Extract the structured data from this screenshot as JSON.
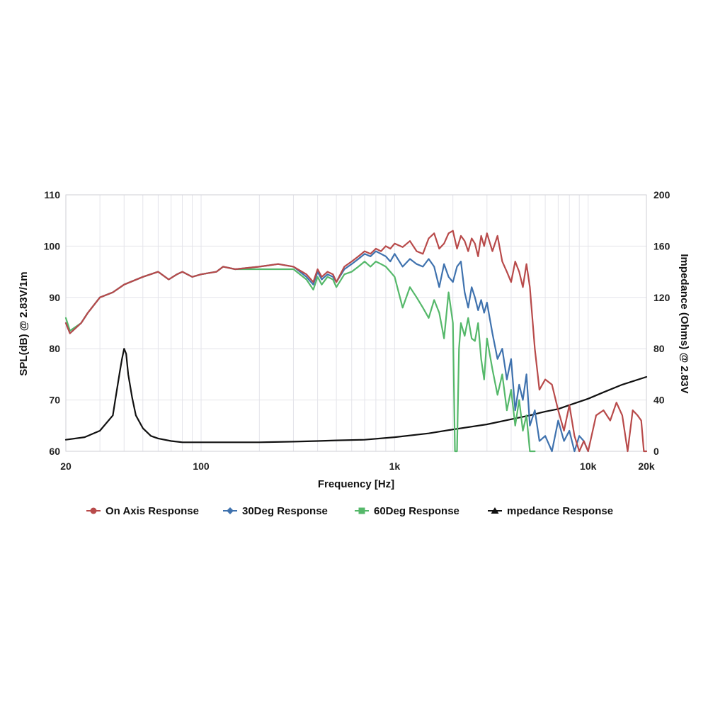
{
  "chart_data": {
    "type": "line",
    "xlabel": "Frequency [Hz]",
    "ylabel_left": "SPL(dB) @ 2.83V/1m",
    "ylabel_right": "Impedance (Ohms) @ 2.83V",
    "x_scale": "log",
    "xlim": [
      20,
      20000
    ],
    "ylim_left": [
      60,
      110
    ],
    "ylim_right": [
      0,
      200
    ],
    "x_ticks": [
      {
        "value": 20,
        "label": "20"
      },
      {
        "value": 100,
        "label": "100"
      },
      {
        "value": 1000,
        "label": "1k"
      },
      {
        "value": 10000,
        "label": "10k"
      },
      {
        "value": 20000,
        "label": "20k"
      }
    ],
    "y_left_ticks": [
      {
        "value": 60,
        "label": "60"
      },
      {
        "value": 70,
        "label": "70"
      },
      {
        "value": 80,
        "label": "80"
      },
      {
        "value": 90,
        "label": "90"
      },
      {
        "value": 100,
        "label": "100"
      },
      {
        "value": 110,
        "label": "110"
      }
    ],
    "y_right_ticks": [
      {
        "value": 0,
        "label": "0"
      },
      {
        "value": 40,
        "label": "40"
      },
      {
        "value": 80,
        "label": "80"
      },
      {
        "value": 120,
        "label": "120"
      },
      {
        "value": 160,
        "label": "160"
      },
      {
        "value": 200,
        "label": "200"
      }
    ],
    "grid": true,
    "legend_position": "bottom",
    "series": [
      {
        "name": "On Axis Response",
        "color": "#b84a4a",
        "marker": "circle",
        "axis": "left",
        "x": [
          20,
          21,
          24,
          26,
          30,
          35,
          40,
          50,
          60,
          68,
          75,
          80,
          90,
          100,
          120,
          130,
          150,
          200,
          250,
          300,
          350,
          380,
          400,
          420,
          450,
          480,
          500,
          550,
          600,
          650,
          700,
          750,
          800,
          850,
          900,
          950,
          1000,
          1100,
          1200,
          1300,
          1400,
          1500,
          1600,
          1700,
          1800,
          1900,
          2000,
          2100,
          2200,
          2300,
          2400,
          2500,
          2600,
          2700,
          2800,
          2900,
          3000,
          3200,
          3400,
          3600,
          3800,
          4000,
          4200,
          4400,
          4600,
          4800,
          5000,
          5300,
          5600,
          6000,
          6500,
          7000,
          7500,
          8000,
          8500,
          9000,
          9500,
          10000,
          11000,
          12000,
          13000,
          14000,
          15000,
          16000,
          17000,
          18000,
          18800,
          19400,
          20000
        ],
        "y": [
          85,
          83,
          85,
          87,
          90,
          91,
          92.5,
          94,
          95,
          93.5,
          94.5,
          95,
          94,
          94.5,
          95,
          96,
          95.5,
          96,
          96.5,
          96,
          94.5,
          93,
          95.5,
          94,
          95,
          94.5,
          93,
          96,
          97,
          98,
          99,
          98.5,
          99.5,
          99,
          100,
          99.5,
          100.5,
          99.8,
          101,
          99,
          98.5,
          101.5,
          102.5,
          99.5,
          100.5,
          102.5,
          103,
          99.5,
          102,
          101,
          99,
          101.5,
          100.5,
          98,
          102,
          100,
          102.5,
          99,
          102,
          97,
          95,
          93,
          97,
          95,
          92,
          96.5,
          92,
          80,
          72,
          74,
          73,
          68,
          64,
          69,
          63,
          60,
          62,
          60,
          67,
          68,
          66,
          69.5,
          67,
          60,
          68,
          67,
          66,
          60,
          60
        ]
      },
      {
        "name": "30Deg Response",
        "color": "#3f72ae",
        "marker": "diamond",
        "axis": "left",
        "x": [
          20,
          21,
          24,
          26,
          30,
          35,
          40,
          50,
          60,
          68,
          75,
          80,
          90,
          100,
          120,
          130,
          150,
          200,
          250,
          300,
          350,
          380,
          400,
          420,
          450,
          480,
          500,
          550,
          600,
          650,
          700,
          750,
          800,
          850,
          900,
          950,
          1000,
          1100,
          1200,
          1300,
          1400,
          1500,
          1600,
          1700,
          1800,
          1900,
          2000,
          2100,
          2200,
          2300,
          2400,
          2500,
          2600,
          2700,
          2800,
          2900,
          3000,
          3200,
          3400,
          3600,
          3800,
          4000,
          4200,
          4400,
          4600,
          4800,
          5000,
          5300,
          5600,
          6000,
          6500,
          7000,
          7500,
          8000,
          8500,
          9000,
          9500,
          10000
        ],
        "y": [
          85,
          83,
          85,
          87,
          90,
          91,
          92.5,
          94,
          95,
          93.5,
          94.5,
          95,
          94,
          94.5,
          95,
          96,
          95.5,
          96,
          96.5,
          96,
          94,
          92.5,
          95,
          93.5,
          94.5,
          94,
          93,
          95.5,
          96.5,
          97.5,
          98.5,
          98,
          99,
          98.5,
          98,
          97,
          98.5,
          96,
          97.5,
          96.5,
          96,
          97.5,
          96,
          92,
          96.5,
          94,
          93,
          96,
          97,
          91,
          88,
          92,
          90,
          87.5,
          89.5,
          87,
          89,
          83,
          78,
          80,
          74,
          78,
          68,
          73,
          70,
          75,
          65,
          68,
          62,
          63,
          60,
          66,
          62,
          64,
          60,
          63,
          62,
          60
        ]
      },
      {
        "name": "60Deg Response",
        "color": "#55b86a",
        "marker": "square",
        "axis": "left",
        "x": [
          20,
          21,
          24,
          26,
          30,
          35,
          40,
          50,
          60,
          68,
          75,
          80,
          90,
          100,
          120,
          130,
          150,
          200,
          250,
          300,
          350,
          380,
          400,
          420,
          450,
          480,
          500,
          550,
          600,
          650,
          700,
          750,
          800,
          850,
          900,
          950,
          1000,
          1100,
          1200,
          1300,
          1400,
          1500,
          1600,
          1700,
          1800,
          1900,
          2000,
          2050,
          2100,
          2150,
          2200,
          2300,
          2400,
          2500,
          2600,
          2700,
          2800,
          2900,
          3000,
          3200,
          3400,
          3600,
          3800,
          4000,
          4200,
          4400,
          4600,
          4800,
          5000,
          5300
        ],
        "y": [
          86,
          83.5,
          85,
          87,
          90,
          91,
          92.5,
          94,
          95,
          93.5,
          94.5,
          95,
          94,
          94.5,
          95,
          96,
          95.5,
          95.5,
          95.5,
          95.5,
          93.5,
          91.5,
          94,
          92.5,
          94,
          93.5,
          92,
          94.5,
          95,
          96,
          97,
          96,
          97,
          96.5,
          96,
          95,
          94,
          88,
          92,
          90,
          88,
          86,
          89.5,
          87,
          82,
          91,
          85,
          60,
          60,
          80,
          85,
          82.5,
          86,
          82,
          81.5,
          85,
          78,
          74,
          82,
          76,
          71,
          75,
          68,
          72,
          65,
          70,
          64,
          67,
          60,
          60
        ]
      },
      {
        "name": "mpedance Response",
        "color": "#111111",
        "marker": "triangle",
        "axis": "right",
        "x": [
          20,
          25,
          30,
          35,
          36,
          38,
          39,
          40,
          41,
          42,
          44,
          46,
          50,
          55,
          60,
          70,
          80,
          100,
          150,
          200,
          300,
          400,
          500,
          700,
          1000,
          1500,
          2000,
          3000,
          4000,
          5000,
          6000,
          7000,
          8000,
          10000,
          12000,
          15000,
          20000
        ],
        "y": [
          9,
          11,
          16,
          28,
          40,
          62,
          72,
          80,
          76,
          60,
          42,
          28,
          18,
          12,
          10,
          8,
          7,
          7,
          7,
          7,
          7.5,
          8,
          8.5,
          9,
          11,
          14,
          17,
          21,
          25,
          28,
          31,
          33,
          36,
          41,
          46,
          52,
          58
        ]
      }
    ]
  }
}
